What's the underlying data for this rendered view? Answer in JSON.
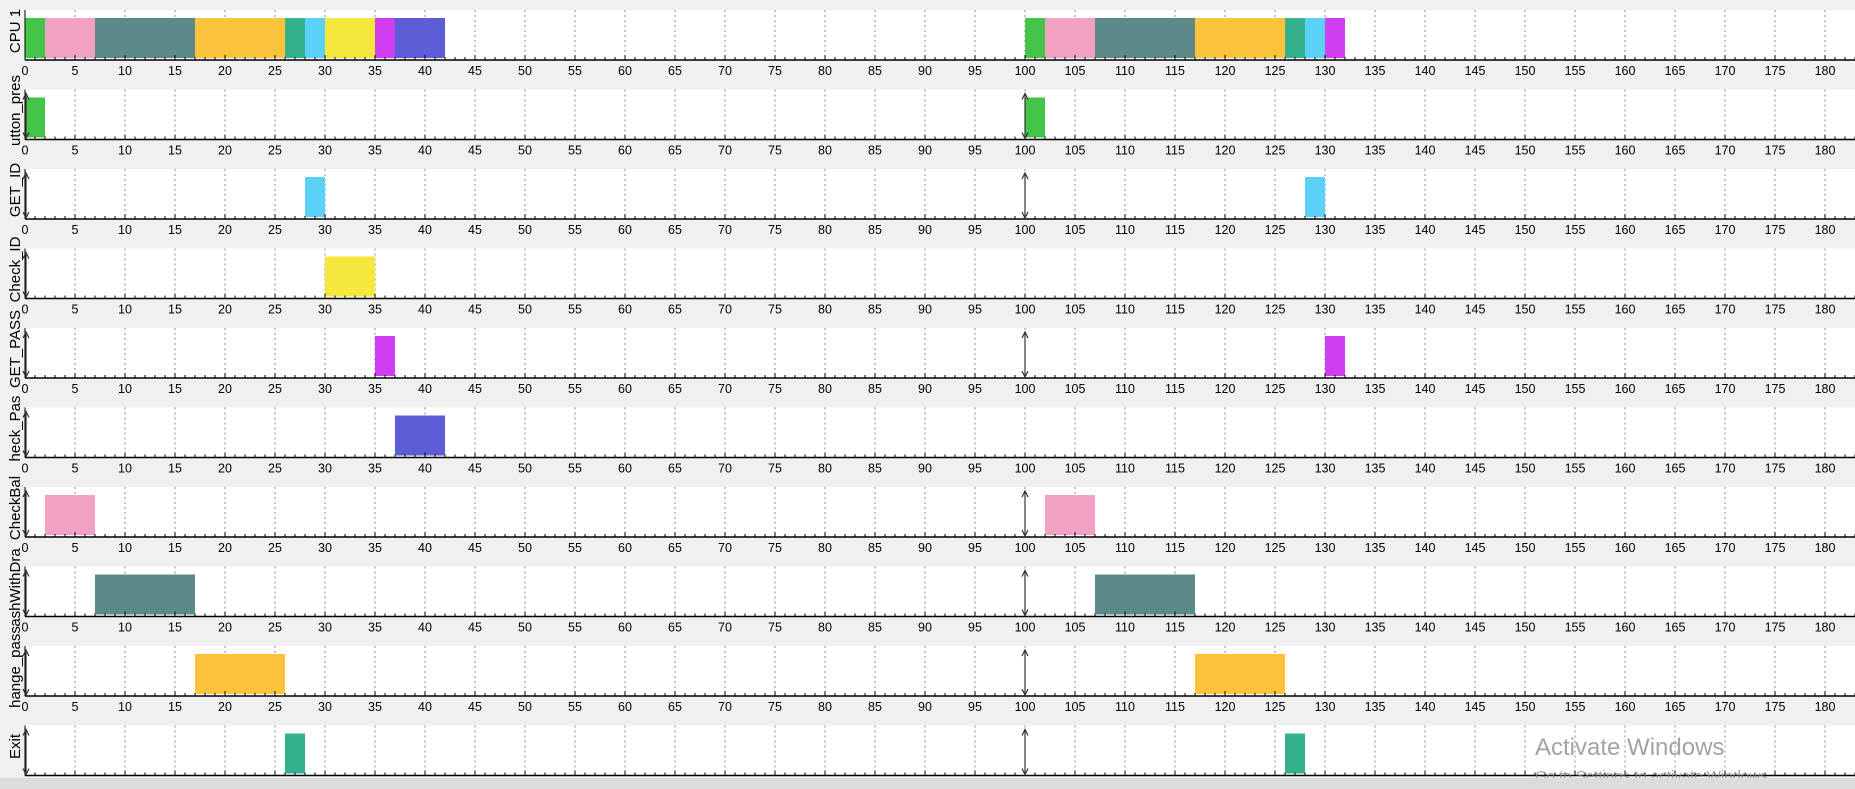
{
  "chart_data": {
    "type": "gantt",
    "xlim": [
      0,
      180
    ],
    "x_ticks": [
      0,
      5,
      10,
      15,
      20,
      25,
      30,
      35,
      40,
      45,
      50,
      55,
      60,
      65,
      70,
      75,
      80,
      85,
      90,
      95,
      100,
      105,
      110,
      115,
      120,
      125,
      130,
      135,
      140,
      145,
      150,
      155,
      160,
      165,
      170,
      175,
      180
    ],
    "grid": "vertical dashed",
    "rows": [
      {
        "label": "CPU 1",
        "segments": [
          {
            "start": 0,
            "end": 2,
            "color": "#45c44a"
          },
          {
            "start": 2,
            "end": 7,
            "color": "#f2a1c3"
          },
          {
            "start": 7,
            "end": 17,
            "color": "#5b8a89"
          },
          {
            "start": 17,
            "end": 26,
            "color": "#fbc23c"
          },
          {
            "start": 26,
            "end": 28,
            "color": "#36b18d"
          },
          {
            "start": 28,
            "end": 30,
            "color": "#5ad2f7"
          },
          {
            "start": 30,
            "end": 35,
            "color": "#f6e73d"
          },
          {
            "start": 35,
            "end": 37,
            "color": "#cf3ef0"
          },
          {
            "start": 37,
            "end": 42,
            "color": "#5d5dd8"
          },
          {
            "start": 100,
            "end": 102,
            "color": "#45c44a"
          },
          {
            "start": 102,
            "end": 107,
            "color": "#f2a1c3"
          },
          {
            "start": 107,
            "end": 117,
            "color": "#5b8a89"
          },
          {
            "start": 117,
            "end": 126,
            "color": "#fbc23c"
          },
          {
            "start": 126,
            "end": 128,
            "color": "#36b18d"
          },
          {
            "start": 128,
            "end": 130,
            "color": "#5ad2f7"
          },
          {
            "start": 130,
            "end": 132,
            "color": "#cf3ef0"
          }
        ],
        "arrivals": []
      },
      {
        "label": "utton_pres",
        "segments": [
          {
            "start": 0,
            "end": 2,
            "color": "#45c44a"
          },
          {
            "start": 100,
            "end": 102,
            "color": "#45c44a"
          }
        ],
        "arrivals": [
          0,
          100
        ]
      },
      {
        "label": "GET_ID",
        "segments": [
          {
            "start": 28,
            "end": 30,
            "color": "#5ad2f7"
          },
          {
            "start": 128,
            "end": 130,
            "color": "#5ad2f7"
          }
        ],
        "arrivals": [
          0,
          100
        ]
      },
      {
        "label": "Check_ID",
        "segments": [
          {
            "start": 30,
            "end": 35,
            "color": "#f6e73d"
          }
        ],
        "arrivals": [
          0
        ]
      },
      {
        "label": "GET_PASS",
        "segments": [
          {
            "start": 35,
            "end": 37,
            "color": "#cf3ef0"
          },
          {
            "start": 130,
            "end": 132,
            "color": "#cf3ef0"
          }
        ],
        "arrivals": [
          0,
          100
        ]
      },
      {
        "label": "heck_Pas",
        "segments": [
          {
            "start": 37,
            "end": 42,
            "color": "#5d5dd8"
          }
        ],
        "arrivals": [
          0
        ]
      },
      {
        "label": "CheckBal",
        "segments": [
          {
            "start": 2,
            "end": 7,
            "color": "#f2a1c3"
          },
          {
            "start": 102,
            "end": 107,
            "color": "#f2a1c3"
          }
        ],
        "arrivals": [
          0,
          100
        ]
      },
      {
        "label": "ashWithDra",
        "segments": [
          {
            "start": 7,
            "end": 17,
            "color": "#5b8a89"
          },
          {
            "start": 107,
            "end": 117,
            "color": "#5b8a89"
          }
        ],
        "arrivals": [
          0,
          100
        ]
      },
      {
        "label": "hange_pass",
        "segments": [
          {
            "start": 17,
            "end": 26,
            "color": "#fbc23c"
          },
          {
            "start": 117,
            "end": 126,
            "color": "#fbc23c"
          }
        ],
        "arrivals": [
          0,
          100
        ]
      },
      {
        "label": "Exit",
        "segments": [
          {
            "start": 26,
            "end": 28,
            "color": "#36b18d"
          },
          {
            "start": 126,
            "end": 128,
            "color": "#36b18d"
          }
        ],
        "arrivals": [
          0,
          100
        ]
      }
    ]
  },
  "watermark": {
    "title": "Activate Windows",
    "subtitle": "Go to Settings to activate Windows."
  }
}
